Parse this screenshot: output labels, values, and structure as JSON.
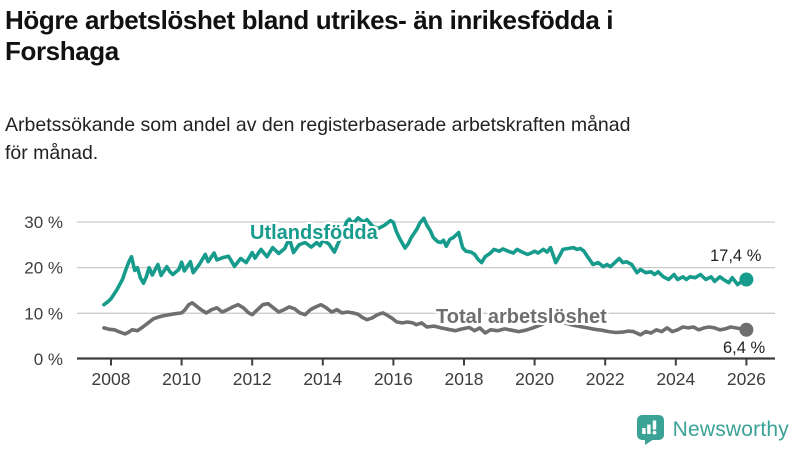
{
  "header": {
    "title_lines": [
      "Högre arbetslöshet bland utrikes- än inrikesfödda i",
      "Forshaga"
    ],
    "subtitle_lines": [
      "Arbetssökande som andel av den registerbaserade arbetskraften månad",
      "för månad."
    ]
  },
  "branding": {
    "logo_text": "Newsworthy",
    "logo_icon": "bar-chart-speech-bubble-icon",
    "logo_color": "#3ba296"
  },
  "chart_data": {
    "type": "line",
    "unit": "%",
    "grid": "horizontal-only",
    "legend_position": "inline-on-lines",
    "ylim": [
      0,
      33
    ],
    "xlim": [
      2007.0,
      2026.8
    ],
    "colors": {
      "gridline": "#cccccc",
      "axis": "#3d3d3d",
      "tick_text": "#3d3d3d"
    },
    "y_ticks": [
      {
        "value": 30,
        "label": "30 %"
      },
      {
        "value": 20,
        "label": "20 %"
      },
      {
        "value": 10,
        "label": "10 %"
      },
      {
        "value": 0,
        "label": "0 %"
      }
    ],
    "x_ticks": [
      {
        "value": 2008,
        "label": "2008"
      },
      {
        "value": 2010,
        "label": "2010"
      },
      {
        "value": 2012,
        "label": "2012"
      },
      {
        "value": 2014,
        "label": "2014"
      },
      {
        "value": 2016,
        "label": "2016"
      },
      {
        "value": 2018,
        "label": "2018"
      },
      {
        "value": 2020,
        "label": "2020"
      },
      {
        "value": 2022,
        "label": "2022"
      },
      {
        "value": 2024,
        "label": "2024"
      },
      {
        "value": 2026,
        "label": "2026"
      }
    ],
    "series": [
      {
        "name": "Utlandsfödda",
        "color": "#169b8c",
        "end_value": 17.4,
        "end_label": "17,4 %",
        "points": [
          [
            2007.8,
            11.9
          ],
          [
            2007.92,
            12.6
          ],
          [
            2008.0,
            13.2
          ],
          [
            2008.17,
            15.2
          ],
          [
            2008.33,
            17.5
          ],
          [
            2008.42,
            19.5
          ],
          [
            2008.5,
            21.2
          ],
          [
            2008.58,
            22.4
          ],
          [
            2008.67,
            19.4
          ],
          [
            2008.75,
            20.0
          ],
          [
            2008.83,
            17.8
          ],
          [
            2008.92,
            16.6
          ],
          [
            2009.0,
            18.0
          ],
          [
            2009.08,
            20.0
          ],
          [
            2009.17,
            18.4
          ],
          [
            2009.33,
            20.7
          ],
          [
            2009.42,
            18.3
          ],
          [
            2009.58,
            20.2
          ],
          [
            2009.67,
            19.1
          ],
          [
            2009.75,
            18.5
          ],
          [
            2009.92,
            19.6
          ],
          [
            2010.0,
            21.2
          ],
          [
            2010.08,
            19.3
          ],
          [
            2010.25,
            21.3
          ],
          [
            2010.33,
            18.9
          ],
          [
            2010.5,
            20.7
          ],
          [
            2010.67,
            22.9
          ],
          [
            2010.75,
            21.3
          ],
          [
            2010.92,
            23.2
          ],
          [
            2011.0,
            21.7
          ],
          [
            2011.17,
            22.2
          ],
          [
            2011.33,
            22.5
          ],
          [
            2011.5,
            20.3
          ],
          [
            2011.67,
            22.0
          ],
          [
            2011.83,
            21.1
          ],
          [
            2012.0,
            23.3
          ],
          [
            2012.08,
            22.1
          ],
          [
            2012.25,
            24.0
          ],
          [
            2012.42,
            22.4
          ],
          [
            2012.58,
            24.4
          ],
          [
            2012.75,
            23.1
          ],
          [
            2012.92,
            24.2
          ],
          [
            2013.0,
            25.5
          ],
          [
            2013.08,
            25.7
          ],
          [
            2013.17,
            23.3
          ],
          [
            2013.33,
            25.0
          ],
          [
            2013.5,
            25.5
          ],
          [
            2013.67,
            24.5
          ],
          [
            2013.83,
            25.5
          ],
          [
            2013.92,
            24.8
          ],
          [
            2014.0,
            26.0
          ],
          [
            2014.17,
            25.2
          ],
          [
            2014.33,
            23.4
          ],
          [
            2014.5,
            26.5
          ],
          [
            2014.58,
            28.0
          ],
          [
            2014.67,
            30.0
          ],
          [
            2014.75,
            30.6
          ],
          [
            2014.83,
            29.8
          ],
          [
            2014.92,
            30.2
          ],
          [
            2015.0,
            30.9
          ],
          [
            2015.08,
            30.4
          ],
          [
            2015.17,
            30.0
          ],
          [
            2015.25,
            30.5
          ],
          [
            2015.42,
            29.0
          ],
          [
            2015.58,
            28.6
          ],
          [
            2015.75,
            29.3
          ],
          [
            2015.92,
            30.3
          ],
          [
            2016.0,
            29.9
          ],
          [
            2016.08,
            28.0
          ],
          [
            2016.17,
            26.5
          ],
          [
            2016.33,
            24.3
          ],
          [
            2016.42,
            25.2
          ],
          [
            2016.5,
            26.5
          ],
          [
            2016.67,
            28.5
          ],
          [
            2016.75,
            29.8
          ],
          [
            2016.86,
            30.8
          ],
          [
            2016.95,
            29.3
          ],
          [
            2017.05,
            28.0
          ],
          [
            2017.13,
            26.6
          ],
          [
            2017.25,
            25.7
          ],
          [
            2017.34,
            25.5
          ],
          [
            2017.42,
            26.0
          ],
          [
            2017.5,
            24.7
          ],
          [
            2017.6,
            26.2
          ],
          [
            2017.7,
            26.6
          ],
          [
            2017.85,
            27.7
          ],
          [
            2017.96,
            24.4
          ],
          [
            2018.05,
            23.6
          ],
          [
            2018.2,
            23.4
          ],
          [
            2018.3,
            22.9
          ],
          [
            2018.4,
            21.8
          ],
          [
            2018.5,
            21.1
          ],
          [
            2018.6,
            22.4
          ],
          [
            2018.75,
            23.2
          ],
          [
            2018.85,
            24.0
          ],
          [
            2019.0,
            23.6
          ],
          [
            2019.1,
            24.1
          ],
          [
            2019.25,
            23.6
          ],
          [
            2019.4,
            23.2
          ],
          [
            2019.5,
            24.0
          ],
          [
            2019.65,
            23.4
          ],
          [
            2019.8,
            22.9
          ],
          [
            2019.9,
            23.2
          ],
          [
            2020.0,
            23.6
          ],
          [
            2020.1,
            23.2
          ],
          [
            2020.25,
            24.0
          ],
          [
            2020.35,
            23.4
          ],
          [
            2020.45,
            24.4
          ],
          [
            2020.6,
            21.1
          ],
          [
            2020.75,
            23.2
          ],
          [
            2020.8,
            24.0
          ],
          [
            2020.95,
            24.2
          ],
          [
            2021.1,
            24.4
          ],
          [
            2021.2,
            24.0
          ],
          [
            2021.3,
            24.2
          ],
          [
            2021.4,
            23.6
          ],
          [
            2021.5,
            22.4
          ],
          [
            2021.6,
            21.3
          ],
          [
            2021.65,
            20.7
          ],
          [
            2021.8,
            21.1
          ],
          [
            2021.95,
            20.2
          ],
          [
            2022.05,
            20.7
          ],
          [
            2022.15,
            20.2
          ],
          [
            2022.3,
            21.3
          ],
          [
            2022.4,
            22.0
          ],
          [
            2022.5,
            21.1
          ],
          [
            2022.6,
            21.3
          ],
          [
            2022.75,
            20.7
          ],
          [
            2022.9,
            18.9
          ],
          [
            2023.0,
            19.6
          ],
          [
            2023.15,
            18.9
          ],
          [
            2023.3,
            19.1
          ],
          [
            2023.4,
            18.5
          ],
          [
            2023.5,
            19.1
          ],
          [
            2023.65,
            18.0
          ],
          [
            2023.8,
            17.4
          ],
          [
            2023.95,
            18.5
          ],
          [
            2024.05,
            17.4
          ],
          [
            2024.2,
            18.0
          ],
          [
            2024.3,
            17.4
          ],
          [
            2024.4,
            18.0
          ],
          [
            2024.55,
            17.8
          ],
          [
            2024.7,
            18.5
          ],
          [
            2024.85,
            17.4
          ],
          [
            2025.0,
            18.0
          ],
          [
            2025.1,
            17.0
          ],
          [
            2025.25,
            18.0
          ],
          [
            2025.35,
            17.4
          ],
          [
            2025.5,
            16.7
          ],
          [
            2025.6,
            17.8
          ],
          [
            2025.75,
            16.3
          ],
          [
            2025.9,
            17.2
          ],
          [
            2026.0,
            17.4
          ]
        ]
      },
      {
        "name": "Total arbetslöshet",
        "color": "#6f6f6f",
        "end_value": 6.4,
        "end_label": "6,4 %",
        "points": [
          [
            2007.8,
            6.8
          ],
          [
            2007.95,
            6.5
          ],
          [
            2008.1,
            6.4
          ],
          [
            2008.25,
            5.9
          ],
          [
            2008.4,
            5.5
          ],
          [
            2008.5,
            5.9
          ],
          [
            2008.6,
            6.4
          ],
          [
            2008.75,
            6.2
          ],
          [
            2008.9,
            7.0
          ],
          [
            2009.05,
            7.9
          ],
          [
            2009.2,
            8.8
          ],
          [
            2009.35,
            9.2
          ],
          [
            2009.5,
            9.5
          ],
          [
            2009.65,
            9.7
          ],
          [
            2009.8,
            9.9
          ],
          [
            2010.0,
            10.1
          ],
          [
            2010.1,
            10.8
          ],
          [
            2010.2,
            11.9
          ],
          [
            2010.3,
            12.3
          ],
          [
            2010.45,
            11.4
          ],
          [
            2010.55,
            10.8
          ],
          [
            2010.7,
            10.1
          ],
          [
            2010.85,
            10.8
          ],
          [
            2011.0,
            11.2
          ],
          [
            2011.15,
            10.3
          ],
          [
            2011.3,
            10.8
          ],
          [
            2011.45,
            11.4
          ],
          [
            2011.6,
            11.9
          ],
          [
            2011.75,
            11.2
          ],
          [
            2011.9,
            10.1
          ],
          [
            2012.0,
            9.7
          ],
          [
            2012.15,
            10.8
          ],
          [
            2012.3,
            11.9
          ],
          [
            2012.45,
            12.1
          ],
          [
            2012.6,
            11.2
          ],
          [
            2012.75,
            10.3
          ],
          [
            2012.9,
            10.8
          ],
          [
            2013.05,
            11.4
          ],
          [
            2013.2,
            11.0
          ],
          [
            2013.35,
            10.1
          ],
          [
            2013.5,
            9.7
          ],
          [
            2013.65,
            10.8
          ],
          [
            2013.8,
            11.4
          ],
          [
            2013.95,
            11.9
          ],
          [
            2014.1,
            11.2
          ],
          [
            2014.25,
            10.3
          ],
          [
            2014.4,
            10.8
          ],
          [
            2014.55,
            10.1
          ],
          [
            2014.7,
            10.3
          ],
          [
            2014.85,
            10.1
          ],
          [
            2015.0,
            9.8
          ],
          [
            2015.1,
            9.2
          ],
          [
            2015.25,
            8.6
          ],
          [
            2015.4,
            9.0
          ],
          [
            2015.55,
            9.7
          ],
          [
            2015.7,
            10.1
          ],
          [
            2015.8,
            9.7
          ],
          [
            2015.95,
            9.0
          ],
          [
            2016.1,
            8.1
          ],
          [
            2016.25,
            7.9
          ],
          [
            2016.4,
            8.1
          ],
          [
            2016.55,
            7.9
          ],
          [
            2016.65,
            7.5
          ],
          [
            2016.8,
            7.9
          ],
          [
            2016.95,
            7.0
          ],
          [
            2017.15,
            7.2
          ],
          [
            2017.35,
            6.8
          ],
          [
            2017.55,
            6.5
          ],
          [
            2017.75,
            6.2
          ],
          [
            2017.95,
            6.6
          ],
          [
            2018.15,
            6.9
          ],
          [
            2018.3,
            6.2
          ],
          [
            2018.45,
            6.8
          ],
          [
            2018.6,
            5.7
          ],
          [
            2018.75,
            6.4
          ],
          [
            2018.95,
            6.2
          ],
          [
            2019.15,
            6.6
          ],
          [
            2019.35,
            6.3
          ],
          [
            2019.55,
            6.0
          ],
          [
            2019.75,
            6.3
          ],
          [
            2019.95,
            6.8
          ],
          [
            2020.15,
            7.4
          ],
          [
            2020.35,
            8.1
          ],
          [
            2020.5,
            8.4
          ],
          [
            2020.7,
            8.2
          ],
          [
            2020.9,
            7.8
          ],
          [
            2021.1,
            7.4
          ],
          [
            2021.3,
            7.1
          ],
          [
            2021.5,
            6.8
          ],
          [
            2021.7,
            6.5
          ],
          [
            2021.9,
            6.3
          ],
          [
            2022.1,
            6.0
          ],
          [
            2022.3,
            5.8
          ],
          [
            2022.5,
            5.9
          ],
          [
            2022.65,
            6.1
          ],
          [
            2022.8,
            6.0
          ],
          [
            2023.0,
            5.3
          ],
          [
            2023.15,
            6.0
          ],
          [
            2023.3,
            5.7
          ],
          [
            2023.45,
            6.4
          ],
          [
            2023.6,
            6.0
          ],
          [
            2023.75,
            6.8
          ],
          [
            2023.9,
            6.0
          ],
          [
            2024.05,
            6.4
          ],
          [
            2024.2,
            7.0
          ],
          [
            2024.35,
            6.8
          ],
          [
            2024.5,
            7.0
          ],
          [
            2024.65,
            6.4
          ],
          [
            2024.8,
            6.8
          ],
          [
            2024.95,
            7.0
          ],
          [
            2025.1,
            6.8
          ],
          [
            2025.25,
            6.4
          ],
          [
            2025.4,
            6.6
          ],
          [
            2025.55,
            7.0
          ],
          [
            2025.7,
            6.8
          ],
          [
            2025.85,
            6.6
          ],
          [
            2026.0,
            6.4
          ]
        ]
      }
    ]
  }
}
